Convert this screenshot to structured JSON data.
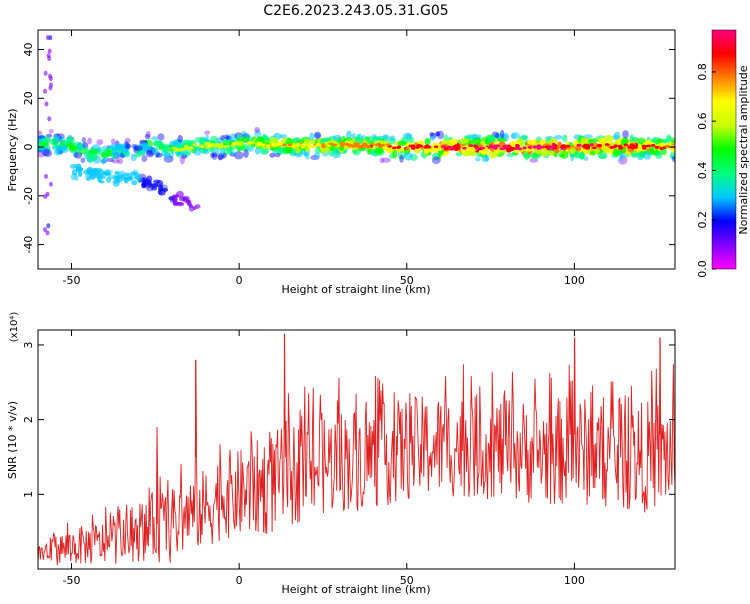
{
  "title": "C2E6.2023.243.05.31.G05",
  "chart_data": [
    {
      "type": "heatmap",
      "xlabel": "Height of straight line (km)",
      "ylabel": "Frequency (Hz)",
      "xlim": [
        -60,
        130
      ],
      "ylim": [
        -50,
        48
      ],
      "x_ticks": [
        -50,
        0,
        50,
        100
      ],
      "y_ticks": [
        -40,
        -20,
        0,
        20,
        40
      ],
      "grid": false,
      "colorbar": {
        "label": "Normalized spectral amplitude",
        "range": [
          0.0,
          0.97
        ],
        "ticks": [
          0.0,
          0.2,
          0.4,
          0.6,
          0.8
        ],
        "colormap": [
          "#ff00ff",
          "#8000ff",
          "#0000ff",
          "#00c8ff",
          "#00ff80",
          "#00ff00",
          "#c8ff00",
          "#ffff00",
          "#ff8000",
          "#ff0000",
          "#ff0080"
        ]
      },
      "main_band": {
        "x": [
          -58,
          -50,
          -45,
          -40,
          -35,
          -30,
          -27,
          -25,
          -20,
          -15,
          -10,
          -5,
          0,
          5,
          10,
          20,
          30,
          40,
          50,
          60,
          70,
          80,
          90,
          100,
          110,
          120,
          128
        ],
        "center_hz": [
          1.5,
          0.5,
          -2.5,
          -3,
          -1,
          -3,
          1,
          0,
          -1,
          0,
          1,
          0.5,
          1,
          2,
          1,
          0.5,
          1,
          0.5,
          0,
          0,
          0,
          0,
          0,
          0,
          0.5,
          0,
          0
        ],
        "amplitude": [
          0.45,
          0.5,
          0.5,
          0.45,
          0.4,
          0.4,
          0.45,
          0.5,
          0.5,
          0.55,
          0.55,
          0.55,
          0.6,
          0.6,
          0.65,
          0.65,
          0.7,
          0.75,
          0.8,
          0.85,
          0.9,
          0.9,
          0.9,
          0.85,
          0.85,
          0.8,
          0.75
        ]
      },
      "secondary_trace": {
        "x": [
          -50,
          -45,
          -40,
          -35,
          -30,
          -25,
          -20,
          -15,
          -12
        ],
        "center_hz": [
          -10,
          -11,
          -12,
          -13,
          -12,
          -16,
          -20,
          -24,
          -26
        ],
        "amplitude": [
          0.25,
          0.3,
          0.3,
          0.3,
          0.25,
          0.2,
          0.15,
          0.1,
          0.08
        ]
      }
    },
    {
      "type": "line",
      "xlabel": "Height of straight line (km)",
      "ylabel": "SNR (10 * v/v)",
      "y_multiplier": "(x10⁴)",
      "xlim": [
        -60,
        130
      ],
      "ylim": [
        0,
        3.2
      ],
      "x_ticks": [
        -50,
        0,
        50,
        100
      ],
      "y_ticks": [
        1,
        2,
        3
      ],
      "grid": false,
      "series": [
        {
          "color": "#e02020",
          "envelope": {
            "x": [
              -60,
              -50,
              -40,
              -30,
              -25,
              -20,
              -15,
              -10,
              -5,
              0,
              10,
              20,
              30,
              40,
              50,
              60,
              70,
              80,
              90,
              100,
              110,
              120,
              130
            ],
            "mean": [
              0.2,
              0.3,
              0.35,
              0.4,
              0.6,
              0.55,
              0.75,
              0.8,
              1.0,
              1.0,
              1.15,
              1.35,
              1.45,
              1.5,
              1.6,
              1.65,
              1.65,
              1.6,
              1.55,
              1.6,
              1.5,
              1.5,
              1.55
            ],
            "spread": [
              0.15,
              0.25,
              0.3,
              0.3,
              0.5,
              0.5,
              0.5,
              0.55,
              0.6,
              0.6,
              0.7,
              0.7,
              0.7,
              0.7,
              0.7,
              0.7,
              0.7,
              0.7,
              0.7,
              0.75,
              0.7,
              0.75,
              0.75
            ]
          },
          "peaks": [
            {
              "x": -24.5,
              "y": 1.9
            },
            {
              "x": -13,
              "y": 2.8
            },
            {
              "x": 13.5,
              "y": 3.15
            },
            {
              "x": 100,
              "y": 3.1
            },
            {
              "x": 125.5,
              "y": 3.1
            }
          ]
        }
      ]
    }
  ]
}
